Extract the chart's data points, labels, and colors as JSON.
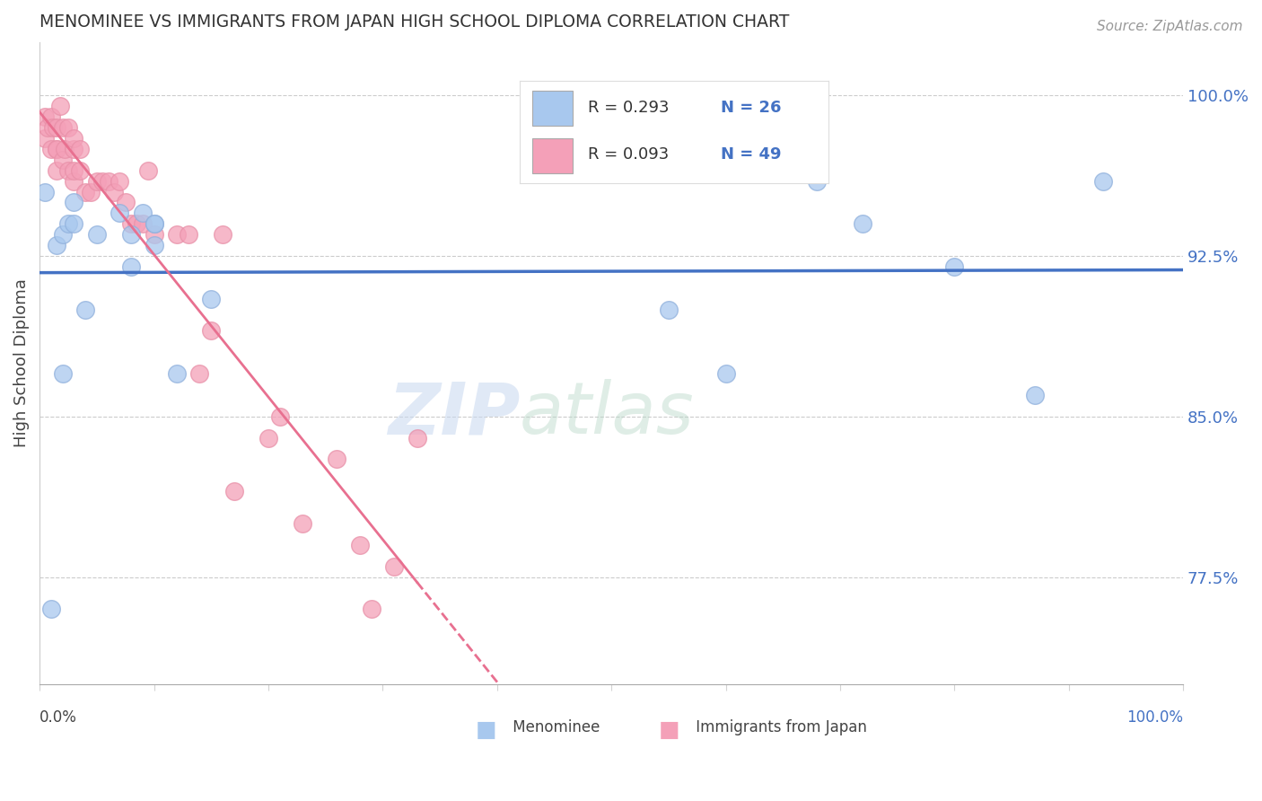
{
  "title": "MENOMINEE VS IMMIGRANTS FROM JAPAN HIGH SCHOOL DIPLOMA CORRELATION CHART",
  "source": "Source: ZipAtlas.com",
  "ylabel": "High School Diploma",
  "xlim": [
    0,
    1
  ],
  "ylim": [
    0.725,
    1.025
  ],
  "yticks": [
    0.775,
    0.85,
    0.925,
    1.0
  ],
  "ytick_labels": [
    "77.5%",
    "85.0%",
    "92.5%",
    "100.0%"
  ],
  "legend_r1": "R = 0.293",
  "legend_n1": "N = 26",
  "legend_r2": "R = 0.093",
  "legend_n2": "N = 49",
  "blue_color": "#A8C8EE",
  "pink_color": "#F4A0B8",
  "blue_line_color": "#4472C4",
  "pink_line_color": "#E87090",
  "menominee_x": [
    0.005,
    0.01,
    0.015,
    0.02,
    0.02,
    0.025,
    0.03,
    0.03,
    0.04,
    0.05,
    0.07,
    0.08,
    0.08,
    0.09,
    0.1,
    0.1,
    0.1,
    0.12,
    0.15,
    0.55,
    0.6,
    0.68,
    0.72,
    0.8,
    0.87,
    0.93
  ],
  "menominee_y": [
    0.955,
    0.76,
    0.93,
    0.87,
    0.935,
    0.94,
    0.94,
    0.95,
    0.9,
    0.935,
    0.945,
    0.935,
    0.92,
    0.945,
    0.94,
    0.94,
    0.93,
    0.87,
    0.905,
    0.9,
    0.87,
    0.96,
    0.94,
    0.92,
    0.86,
    0.96
  ],
  "japan_x": [
    0.005,
    0.005,
    0.007,
    0.01,
    0.01,
    0.012,
    0.015,
    0.015,
    0.015,
    0.015,
    0.018,
    0.02,
    0.02,
    0.022,
    0.025,
    0.025,
    0.03,
    0.03,
    0.03,
    0.03,
    0.035,
    0.035,
    0.04,
    0.045,
    0.05,
    0.055,
    0.06,
    0.065,
    0.07,
    0.075,
    0.08,
    0.085,
    0.09,
    0.095,
    0.1,
    0.12,
    0.13,
    0.14,
    0.15,
    0.16,
    0.17,
    0.2,
    0.21,
    0.23,
    0.26,
    0.28,
    0.29,
    0.31,
    0.33
  ],
  "japan_y": [
    0.98,
    0.99,
    0.985,
    0.975,
    0.99,
    0.985,
    0.975,
    0.985,
    0.965,
    0.975,
    0.995,
    0.97,
    0.985,
    0.975,
    0.965,
    0.985,
    0.96,
    0.975,
    0.98,
    0.965,
    0.965,
    0.975,
    0.955,
    0.955,
    0.96,
    0.96,
    0.96,
    0.955,
    0.96,
    0.95,
    0.94,
    0.94,
    0.94,
    0.965,
    0.935,
    0.935,
    0.935,
    0.87,
    0.89,
    0.935,
    0.815,
    0.84,
    0.85,
    0.8,
    0.83,
    0.79,
    0.76,
    0.78,
    0.84
  ]
}
